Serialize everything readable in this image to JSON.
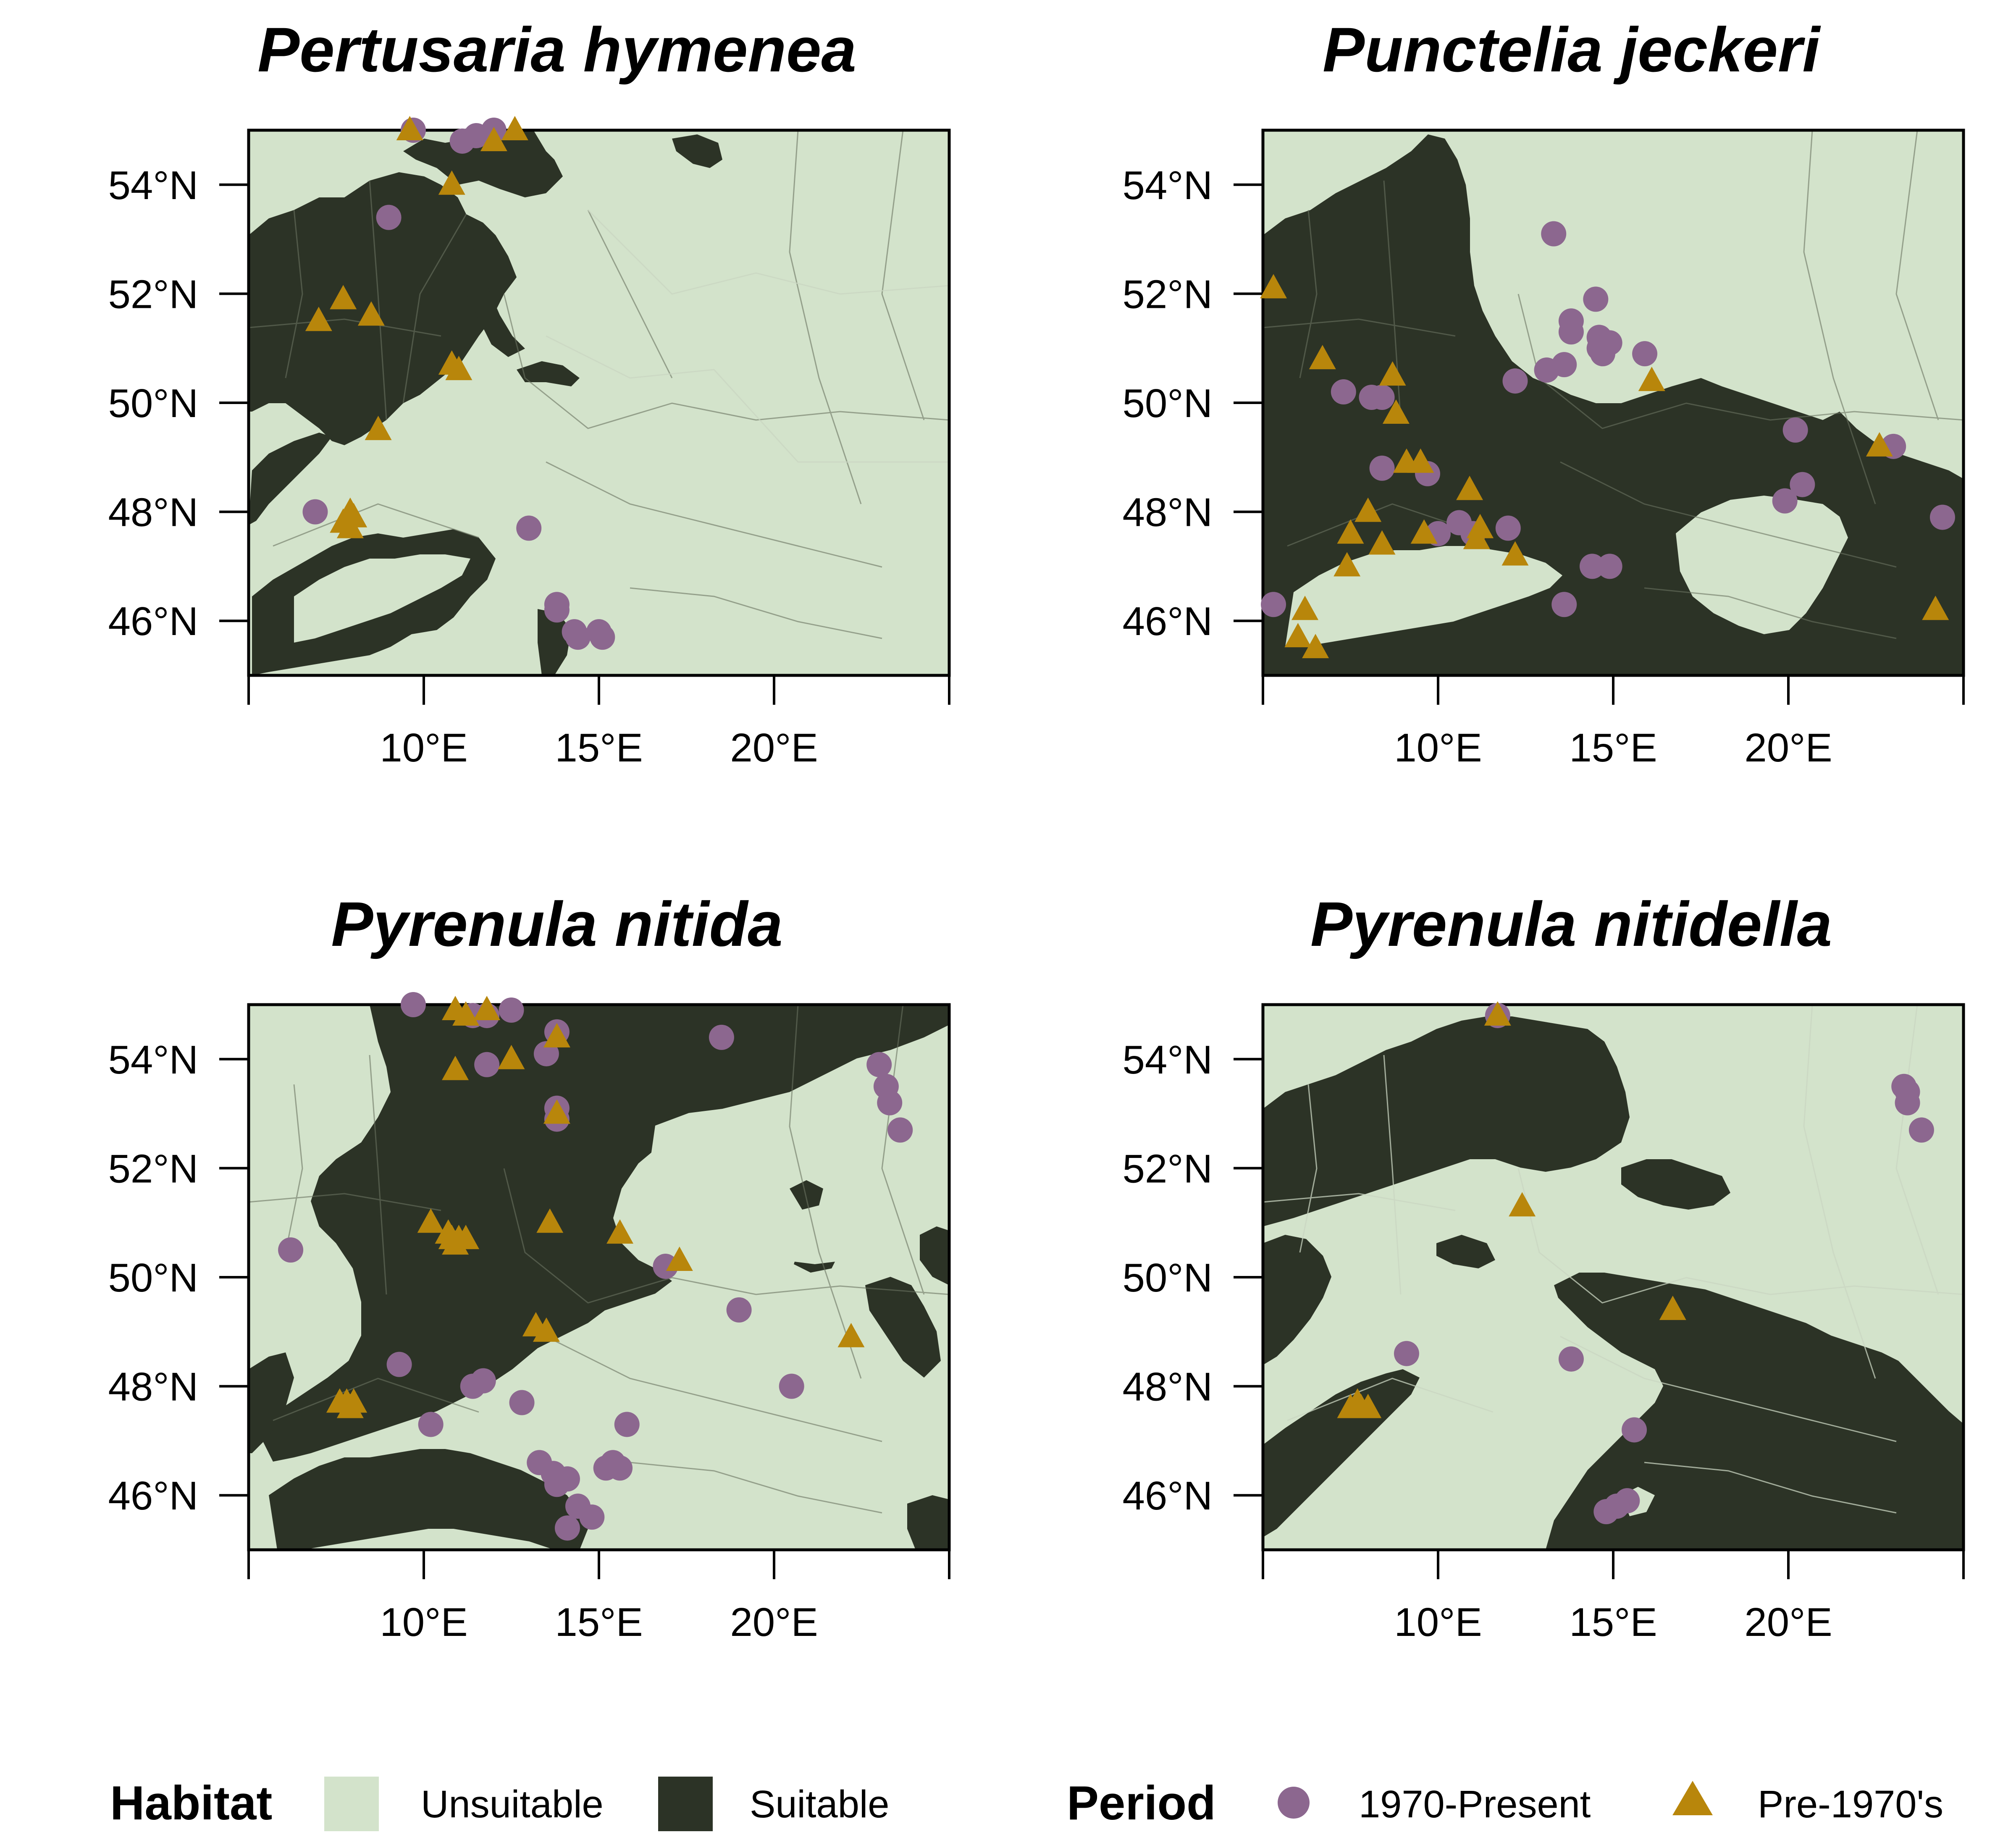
{
  "colors": {
    "unsuitable": "#d3e3cb",
    "suitable": "#2c3326",
    "present_marker": "#8c678f",
    "pre1970_marker": "#b8860b",
    "axis": "#000000"
  },
  "axes": {
    "lon_range": [
      5,
      25
    ],
    "lat_range": [
      45,
      55
    ],
    "x_ticks": [
      {
        "value": 5,
        "label": ""
      },
      {
        "value": 10,
        "label": "10°E"
      },
      {
        "value": 15,
        "label": "15°E"
      },
      {
        "value": 20,
        "label": "20°E"
      },
      {
        "value": 25,
        "label": ""
      }
    ],
    "y_ticks": [
      {
        "value": 46,
        "label": "46°N"
      },
      {
        "value": 48,
        "label": "48°N"
      },
      {
        "value": 50,
        "label": "50°N"
      },
      {
        "value": 52,
        "label": "52°N"
      },
      {
        "value": 54,
        "label": "54°N"
      }
    ]
  },
  "panels": [
    {
      "title": "Pertusaria hymenea",
      "present": [
        [
          9.0,
          53.4
        ],
        [
          6.9,
          48.0
        ],
        [
          13.0,
          47.7
        ],
        [
          13.8,
          46.3
        ],
        [
          13.8,
          46.2
        ],
        [
          14.3,
          45.8
        ],
        [
          14.4,
          45.7
        ],
        [
          15.0,
          45.8
        ],
        [
          15.1,
          45.7
        ],
        [
          11.1,
          54.8
        ],
        [
          11.5,
          54.9
        ],
        [
          12.0,
          55.0
        ],
        [
          9.7,
          55.0
        ]
      ],
      "pre1970": [
        [
          7.0,
          51.5
        ],
        [
          7.7,
          51.9
        ],
        [
          8.5,
          51.6
        ],
        [
          10.8,
          54.0
        ],
        [
          10.8,
          50.7
        ],
        [
          11.0,
          50.6
        ],
        [
          8.7,
          49.5
        ],
        [
          7.7,
          47.8
        ],
        [
          7.9,
          48.0
        ],
        [
          8.0,
          47.9
        ],
        [
          7.9,
          47.7
        ],
        [
          9.6,
          55.0
        ],
        [
          12.0,
          54.8
        ],
        [
          12.6,
          55.0
        ]
      ]
    },
    {
      "title": "Punctelia jeckeri",
      "present": [
        [
          13.3,
          53.1
        ],
        [
          14.5,
          51.9
        ],
        [
          13.8,
          51.5
        ],
        [
          13.8,
          51.3
        ],
        [
          14.6,
          51.2
        ],
        [
          14.9,
          51.1
        ],
        [
          14.7,
          50.9
        ],
        [
          14.6,
          51.0
        ],
        [
          15.9,
          50.9
        ],
        [
          13.6,
          50.7
        ],
        [
          13.1,
          50.6
        ],
        [
          12.2,
          50.4
        ],
        [
          7.3,
          50.2
        ],
        [
          8.1,
          50.1
        ],
        [
          8.4,
          50.1
        ],
        [
          8.4,
          48.8
        ],
        [
          9.7,
          48.7
        ],
        [
          10.6,
          47.8
        ],
        [
          10.0,
          47.6
        ],
        [
          11.0,
          47.6
        ],
        [
          12.0,
          47.7
        ],
        [
          14.4,
          47.0
        ],
        [
          14.9,
          47.0
        ],
        [
          13.6,
          46.3
        ],
        [
          5.3,
          46.3
        ],
        [
          20.2,
          49.5
        ],
        [
          23.0,
          49.2
        ],
        [
          19.9,
          48.2
        ],
        [
          20.4,
          48.5
        ],
        [
          24.4,
          47.9
        ]
      ],
      "pre1970": [
        [
          5.3,
          52.1
        ],
        [
          6.7,
          50.8
        ],
        [
          8.7,
          50.5
        ],
        [
          8.8,
          49.8
        ],
        [
          9.1,
          48.9
        ],
        [
          9.5,
          48.9
        ],
        [
          8.0,
          48.0
        ],
        [
          7.5,
          47.6
        ],
        [
          8.4,
          47.4
        ],
        [
          9.6,
          47.6
        ],
        [
          10.9,
          48.4
        ],
        [
          11.2,
          47.7
        ],
        [
          11.1,
          47.5
        ],
        [
          12.2,
          47.2
        ],
        [
          7.4,
          47.0
        ],
        [
          6.2,
          46.2
        ],
        [
          6.0,
          45.7
        ],
        [
          6.5,
          45.5
        ],
        [
          16.1,
          50.4
        ],
        [
          22.6,
          49.2
        ],
        [
          24.2,
          46.2
        ]
      ]
    },
    {
      "title": "Pyrenula nitida",
      "present": [
        [
          9.7,
          55.0
        ],
        [
          11.4,
          54.8
        ],
        [
          11.8,
          54.8
        ],
        [
          12.5,
          54.9
        ],
        [
          13.8,
          54.5
        ],
        [
          13.5,
          54.1
        ],
        [
          11.8,
          53.9
        ],
        [
          13.8,
          53.1
        ],
        [
          13.8,
          52.9
        ],
        [
          18.5,
          54.4
        ],
        [
          23.0,
          53.9
        ],
        [
          23.2,
          53.5
        ],
        [
          23.3,
          53.2
        ],
        [
          23.6,
          52.7
        ],
        [
          6.2,
          50.5
        ],
        [
          16.9,
          50.2
        ],
        [
          19.0,
          49.4
        ],
        [
          9.3,
          48.4
        ],
        [
          11.4,
          48.0
        ],
        [
          11.7,
          48.1
        ],
        [
          12.8,
          47.7
        ],
        [
          10.2,
          47.3
        ],
        [
          20.5,
          48.0
        ],
        [
          15.8,
          47.3
        ],
        [
          13.3,
          46.6
        ],
        [
          13.7,
          46.4
        ],
        [
          13.8,
          46.2
        ],
        [
          14.1,
          46.3
        ],
        [
          15.2,
          46.5
        ],
        [
          15.4,
          46.6
        ],
        [
          15.6,
          46.5
        ],
        [
          14.4,
          45.8
        ],
        [
          14.8,
          45.6
        ],
        [
          14.1,
          45.4
        ]
      ],
      "pre1970": [
        [
          10.9,
          54.9
        ],
        [
          11.2,
          54.8
        ],
        [
          11.8,
          54.9
        ],
        [
          13.8,
          54.4
        ],
        [
          12.5,
          54.0
        ],
        [
          10.9,
          53.8
        ],
        [
          13.8,
          53.0
        ],
        [
          10.2,
          51.0
        ],
        [
          10.7,
          50.8
        ],
        [
          10.8,
          50.7
        ],
        [
          11.0,
          50.7
        ],
        [
          11.2,
          50.7
        ],
        [
          10.9,
          50.6
        ],
        [
          13.6,
          51.0
        ],
        [
          15.6,
          50.8
        ],
        [
          17.3,
          50.3
        ],
        [
          13.2,
          49.1
        ],
        [
          13.5,
          49.0
        ],
        [
          7.6,
          47.7
        ],
        [
          7.8,
          47.7
        ],
        [
          8.0,
          47.7
        ],
        [
          7.9,
          47.6
        ],
        [
          22.2,
          48.9
        ]
      ]
    },
    {
      "title": "Pyrenula nitidella",
      "present": [
        [
          11.7,
          54.8
        ],
        [
          23.3,
          53.5
        ],
        [
          23.4,
          53.4
        ],
        [
          23.4,
          53.2
        ],
        [
          23.8,
          52.7
        ],
        [
          9.1,
          48.6
        ],
        [
          13.8,
          48.5
        ],
        [
          15.6,
          47.2
        ],
        [
          14.8,
          45.7
        ],
        [
          15.1,
          45.8
        ],
        [
          15.4,
          45.9
        ]
      ],
      "pre1970": [
        [
          11.7,
          54.8
        ],
        [
          12.4,
          51.3
        ],
        [
          16.7,
          49.4
        ],
        [
          7.5,
          47.6
        ],
        [
          7.7,
          47.7
        ],
        [
          7.8,
          47.6
        ],
        [
          8.0,
          47.6
        ]
      ]
    }
  ],
  "legend": {
    "habitat": {
      "title": "Habitat",
      "items": [
        {
          "label": "Unsuitable",
          "color": "#d3e3cb"
        },
        {
          "label": "Suitable",
          "color": "#2c3326"
        }
      ]
    },
    "period": {
      "title": "Period",
      "items": [
        {
          "label": "1970-Present",
          "shape": "circle",
          "color": "#8c678f"
        },
        {
          "label": "Pre-1970's",
          "shape": "triangle",
          "color": "#b8860b"
        }
      ]
    }
  }
}
